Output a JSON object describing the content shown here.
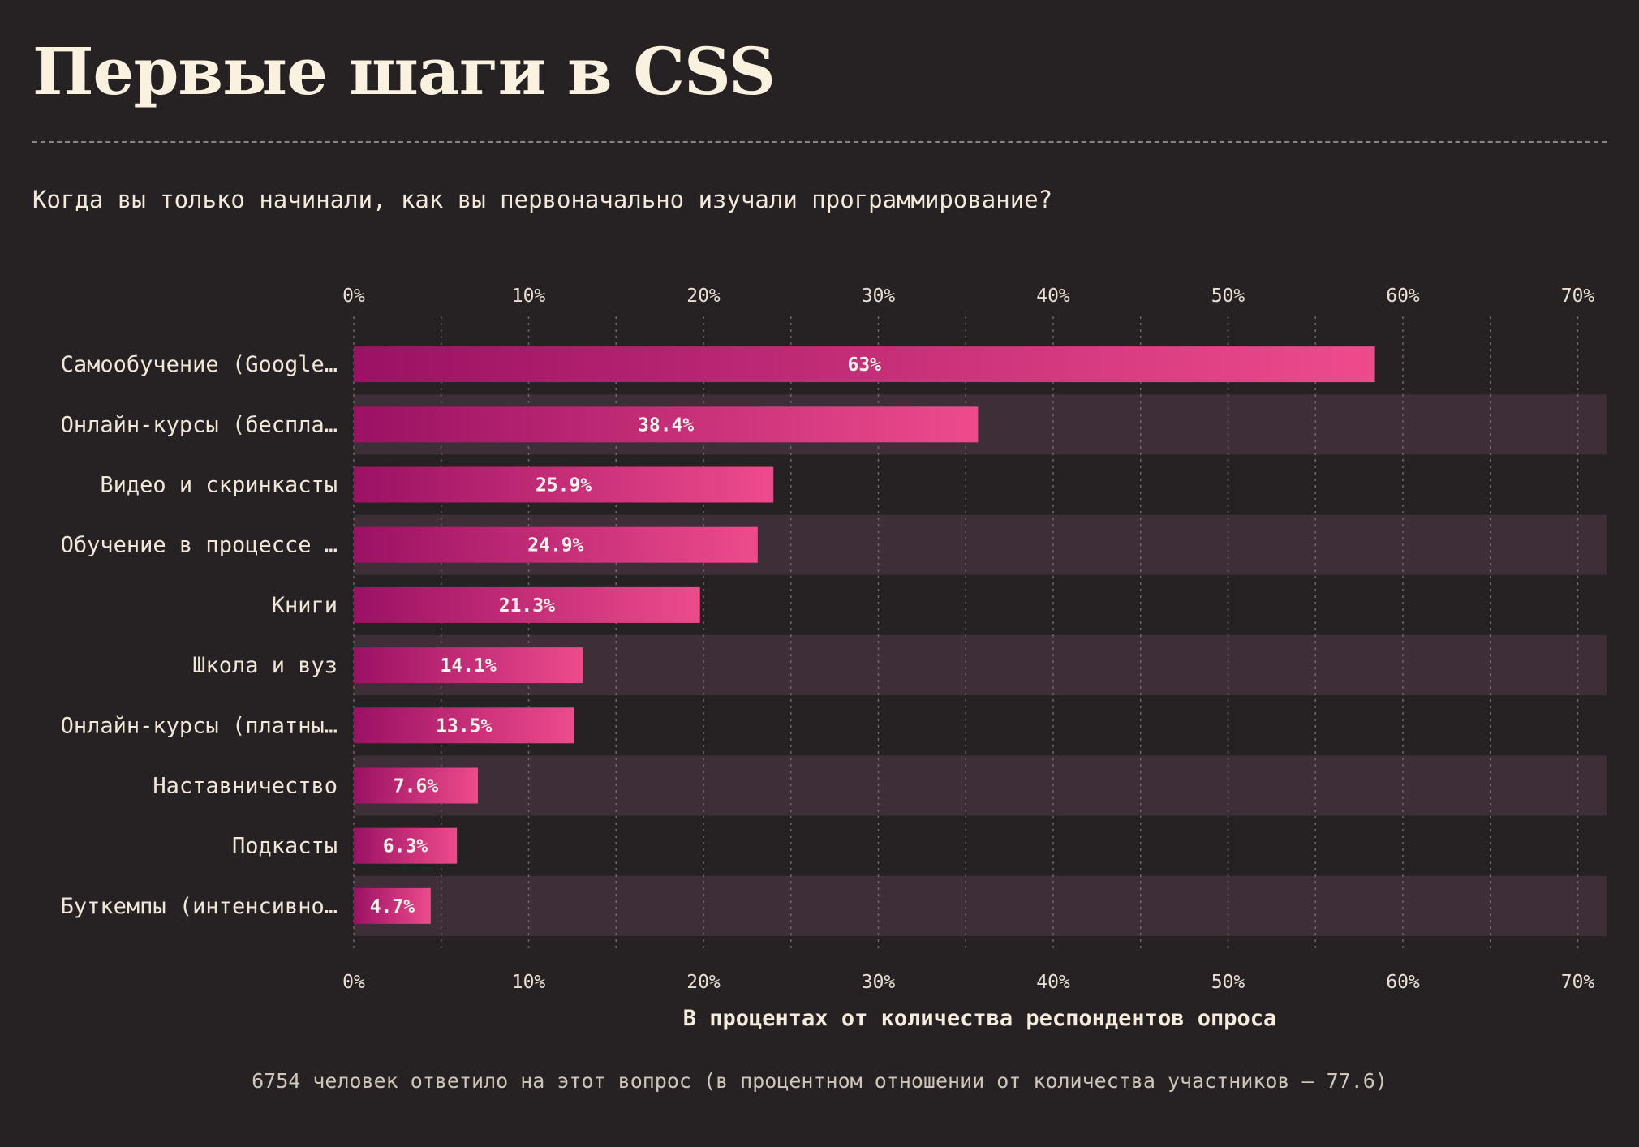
{
  "title": "Первые шаги в CSS",
  "question": "Когда вы только начинали, как вы первоначально изучали программирование?",
  "footnote": "6754 человек ответило на этот вопрос (в процентном отношении от количества участников — 77.6)",
  "colors": {
    "background": "#262224",
    "band": "#3d2e38",
    "bar_start": "#9b1163",
    "bar_end": "#ee4b8c",
    "text": "#f6ecdc"
  },
  "chart_data": {
    "type": "bar",
    "orientation": "horizontal",
    "categories": [
      "Самообучение (Google…",
      "Онлайн-курсы (беспла…",
      "Видео и скринкасты",
      "Обучение в процессе …",
      "Книги",
      "Школа и вуз",
      "Онлайн-курсы (платны…",
      "Наставничество",
      "Подкасты",
      "Буткемпы (интенсивно…"
    ],
    "values": [
      58.4,
      35.7,
      24.0,
      23.1,
      19.8,
      13.1,
      12.6,
      7.1,
      5.9,
      4.4
    ],
    "value_labels": [
      "63%",
      "38.4%",
      "25.9%",
      "24.9%",
      "21.3%",
      "14.1%",
      "13.5%",
      "7.6%",
      "6.3%",
      "4.7%"
    ],
    "xlim": [
      0,
      72
    ],
    "ticks": [
      0,
      10,
      20,
      30,
      40,
      50,
      60,
      70
    ],
    "tick_labels": [
      "0%",
      "10%",
      "20%",
      "30%",
      "40%",
      "50%",
      "60%",
      "70%"
    ],
    "xlabel": "В процентах от количества респондентов опроса",
    "ylabel": "",
    "grid": true,
    "tick_labels_position": "top-and-bottom",
    "alternating_row_bands": true
  }
}
